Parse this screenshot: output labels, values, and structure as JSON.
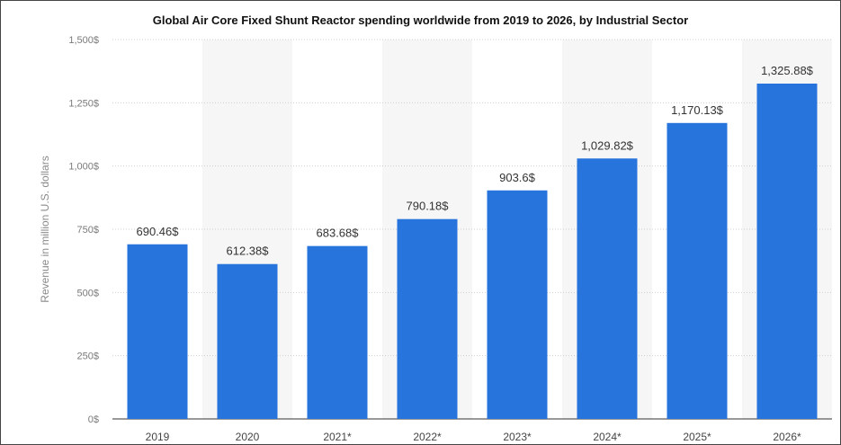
{
  "chart_data": {
    "type": "bar",
    "title": "Global Air Core Fixed Shunt Reactor spending worldwide from 2019 to 2026, by Industrial Sector",
    "xlabel": "",
    "ylabel": "Revenue in million U.S. dollars",
    "categories": [
      "2019",
      "2020",
      "2021*",
      "2022*",
      "2023*",
      "2024*",
      "2025*",
      "2026*"
    ],
    "values": [
      690.46,
      612.38,
      683.68,
      790.18,
      903.6,
      1029.82,
      1170.13,
      1325.88
    ],
    "value_labels": [
      "690.46$",
      "612.38$",
      "683.68$",
      "790.18$",
      "903.6$",
      "1,029.82$",
      "1,170.13$",
      "1,325.88$"
    ],
    "ylim": [
      0,
      1500
    ],
    "yticks": [
      0,
      250,
      500,
      750,
      1000,
      1250,
      1500
    ],
    "ytick_labels": [
      "0$",
      "250$",
      "500$",
      "750$",
      "1,000$",
      "1,250$",
      "1,500$"
    ],
    "grid": true,
    "legend": "none",
    "bar_color": "#2774dd"
  }
}
